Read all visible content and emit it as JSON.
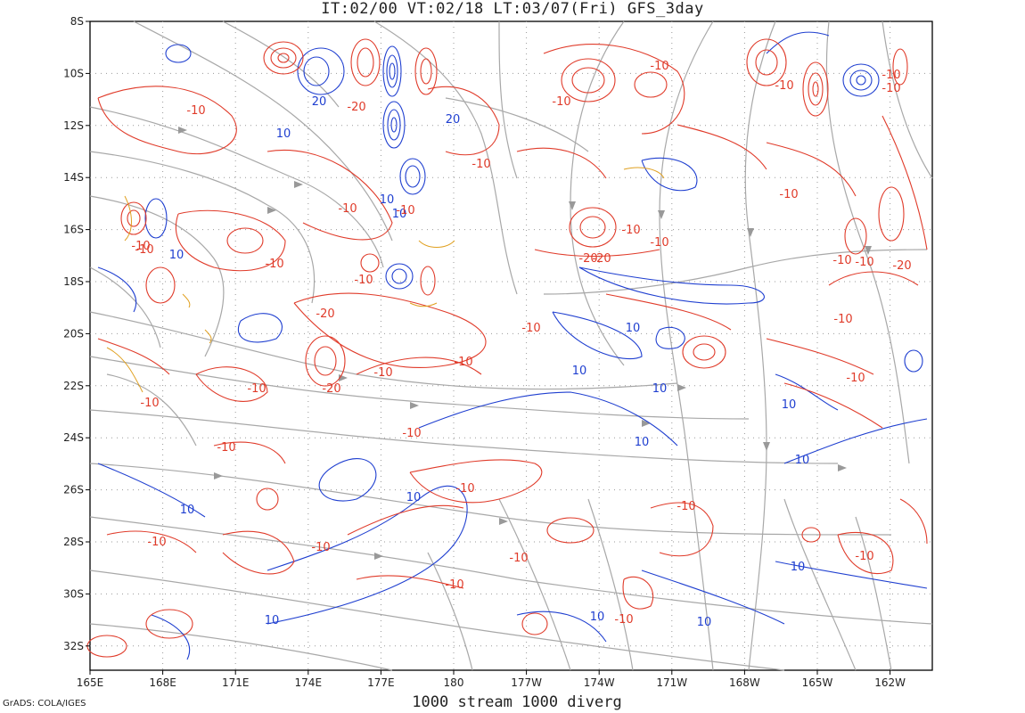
{
  "header": {
    "title": "IT:02/00 VT:02/18 LT:03/07(Fri) GFS_3day"
  },
  "footer": {
    "subtitle": "1000 stream 1000 diverg",
    "credit": "GrADS: COLA/IGES"
  },
  "map": {
    "lat_labels": [
      "8S",
      "10S",
      "12S",
      "14S",
      "16S",
      "18S",
      "20S",
      "22S",
      "24S",
      "26S",
      "28S",
      "30S",
      "32S"
    ],
    "lon_labels": [
      "165E",
      "168E",
      "171E",
      "174E",
      "177E",
      "180",
      "177W",
      "174W",
      "171W",
      "168W",
      "165W",
      "162W"
    ],
    "contour_labels": [
      "-10",
      "20",
      "-20",
      "10",
      "20",
      "-10",
      "10",
      "-10",
      "-10",
      "-10",
      "-10",
      "-10",
      "-10",
      "-10",
      "10",
      "-10",
      "-10",
      "-20",
      "10",
      "-10",
      "-10",
      "-10",
      "-20",
      "-20",
      "-10",
      "-10",
      "-10",
      "10",
      "-10",
      "10",
      "-20",
      "-10",
      "10",
      "-10",
      "10",
      "-10",
      "10",
      "-10",
      "-10",
      "10",
      "10",
      "-10",
      "-10",
      "-10",
      "-10",
      "-10",
      "10",
      "-10",
      "10",
      "-10",
      "10",
      "-10",
      "-10",
      "-10",
      "10",
      "-10",
      "-20",
      "10",
      "-10"
    ],
    "colors": {
      "positive": "#1f3fd0",
      "negative": "#e03b2a",
      "stream": "#a8a8a8",
      "moisture": "#e0a020",
      "grid": "#999999"
    }
  }
}
